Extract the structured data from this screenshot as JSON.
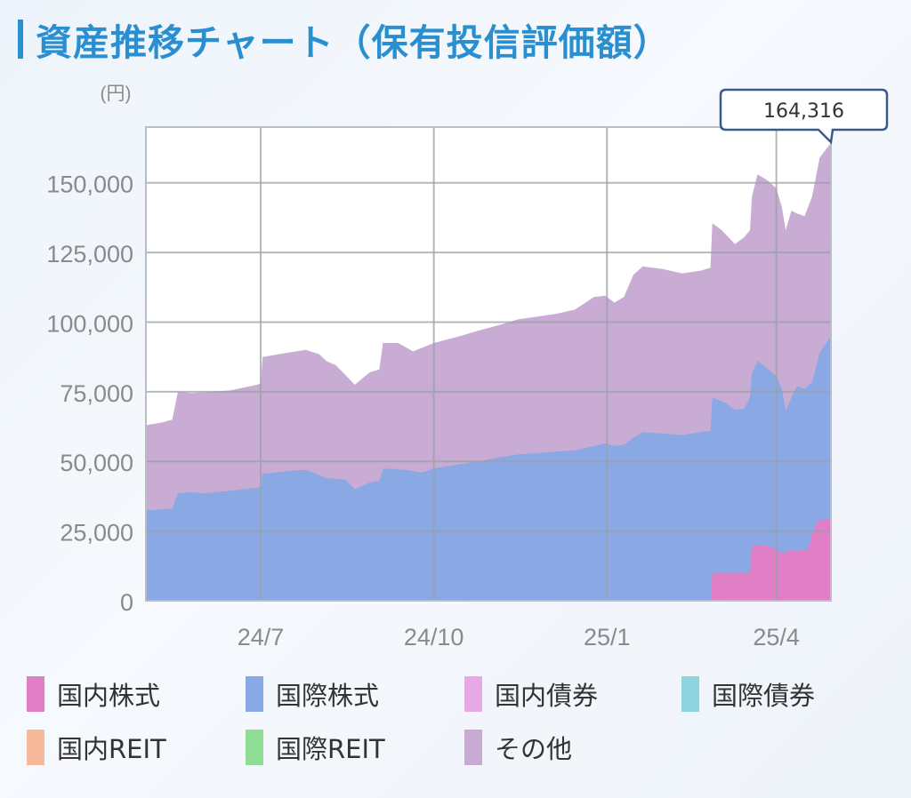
{
  "header": {
    "title": "資産推移チャート（保有投信評価額）"
  },
  "chart_data": {
    "type": "area",
    "stacked": true,
    "unit_label": "(円)",
    "grid": true,
    "ylim": [
      0,
      170000
    ],
    "yticks": [
      0,
      25000,
      50000,
      75000,
      100000,
      125000,
      150000
    ],
    "ytick_labels": [
      "0",
      "25,000",
      "50,000",
      "75,000",
      "100,000",
      "125,000",
      "150,000"
    ],
    "xlim": [
      "2024-05-01",
      "2025-04-30"
    ],
    "xticks": [
      "2024-07-01",
      "2024-10-01",
      "2025-01-01",
      "2025-04-01"
    ],
    "xtick_labels": [
      "24/7",
      "24/10",
      "25/1",
      "25/4"
    ],
    "tooltip": {
      "date": "2025-04-30",
      "label": "164,316"
    },
    "series": [
      {
        "name": "国内株式",
        "color": "#e07fc6",
        "points": [
          [
            "2025-02-25",
            0
          ],
          [
            "2025-02-26",
            10000
          ],
          [
            "2025-03-15",
            10000
          ],
          [
            "2025-03-18",
            10000
          ],
          [
            "2025-03-19",
            20000
          ],
          [
            "2025-03-25",
            20000
          ],
          [
            "2025-03-28",
            19500
          ],
          [
            "2025-04-01",
            18500
          ],
          [
            "2025-04-04",
            17000
          ],
          [
            "2025-04-08",
            18000
          ],
          [
            "2025-04-12",
            18000
          ],
          [
            "2025-04-18",
            18500
          ],
          [
            "2025-04-20",
            24000
          ],
          [
            "2025-04-23",
            28500
          ],
          [
            "2025-04-30",
            29500
          ]
        ]
      },
      {
        "name": "国際株式",
        "color": "#8aa8e4",
        "points": [
          [
            "2024-05-01",
            32500
          ],
          [
            "2024-05-10",
            32800
          ],
          [
            "2024-05-15",
            33100
          ],
          [
            "2024-05-18",
            38500
          ],
          [
            "2024-05-25",
            39000
          ],
          [
            "2024-05-31",
            38500
          ],
          [
            "2024-06-15",
            39500
          ],
          [
            "2024-06-29",
            40500
          ],
          [
            "2024-07-01",
            41000
          ],
          [
            "2024-07-02",
            45500
          ],
          [
            "2024-07-15",
            46500
          ],
          [
            "2024-07-25",
            47000
          ],
          [
            "2024-08-05",
            44000
          ],
          [
            "2024-08-15",
            43500
          ],
          [
            "2024-08-20",
            40000
          ],
          [
            "2024-08-28",
            42500
          ],
          [
            "2024-09-02",
            43000
          ],
          [
            "2024-09-04",
            47500
          ],
          [
            "2024-09-15",
            47000
          ],
          [
            "2024-09-25",
            46000
          ],
          [
            "2024-10-01",
            47500
          ],
          [
            "2024-10-15",
            49000
          ],
          [
            "2024-10-25",
            50000
          ],
          [
            "2024-11-05",
            51500
          ],
          [
            "2024-11-15",
            52500
          ],
          [
            "2024-11-25",
            53000
          ],
          [
            "2024-12-05",
            53500
          ],
          [
            "2024-12-15",
            54000
          ],
          [
            "2024-12-25",
            55500
          ],
          [
            "2024-12-31",
            56500
          ],
          [
            "2025-01-05",
            55500
          ],
          [
            "2025-01-10",
            56000
          ],
          [
            "2025-01-15",
            58500
          ],
          [
            "2025-01-20",
            60500
          ],
          [
            "2025-01-31",
            60000
          ],
          [
            "2025-02-10",
            59500
          ],
          [
            "2025-02-20",
            60500
          ],
          [
            "2025-02-25",
            61000
          ],
          [
            "2025-02-26",
            73000
          ],
          [
            "2025-03-05",
            71000
          ],
          [
            "2025-03-10",
            68500
          ],
          [
            "2025-03-15",
            69000
          ],
          [
            "2025-03-18",
            73000
          ],
          [
            "2025-03-19",
            81500
          ],
          [
            "2025-03-22",
            86000
          ],
          [
            "2025-03-27",
            83500
          ],
          [
            "2025-04-01",
            80500
          ],
          [
            "2025-04-04",
            76000
          ],
          [
            "2025-04-06",
            68000
          ],
          [
            "2025-04-09",
            73000
          ],
          [
            "2025-04-12",
            77000
          ],
          [
            "2025-04-16",
            76000
          ],
          [
            "2025-04-20",
            78500
          ],
          [
            "2025-04-24",
            89000
          ],
          [
            "2025-04-30",
            95000
          ]
        ]
      },
      {
        "name": "国内債券",
        "color": "#e6a9e6",
        "points": []
      },
      {
        "name": "国際債券",
        "color": "#8fd3de",
        "points": []
      },
      {
        "name": "国内REIT",
        "color": "#f8b99a",
        "points": []
      },
      {
        "name": "国際REIT",
        "color": "#8fdc94",
        "points": []
      },
      {
        "name": "その他",
        "color": "#c8acd4",
        "points": [
          [
            "2024-05-01",
            63000
          ],
          [
            "2024-05-10",
            64000
          ],
          [
            "2024-05-15",
            65000
          ],
          [
            "2024-05-18",
            75000
          ],
          [
            "2024-05-25",
            74500
          ],
          [
            "2024-06-05",
            75000
          ],
          [
            "2024-06-15",
            75500
          ],
          [
            "2024-06-29",
            77500
          ],
          [
            "2024-07-01",
            78000
          ],
          [
            "2024-07-02",
            87500
          ],
          [
            "2024-07-15",
            89000
          ],
          [
            "2024-07-25",
            90000
          ],
          [
            "2024-08-01",
            88500
          ],
          [
            "2024-08-05",
            86000
          ],
          [
            "2024-08-10",
            84500
          ],
          [
            "2024-08-20",
            77500
          ],
          [
            "2024-08-28",
            82000
          ],
          [
            "2024-09-02",
            83000
          ],
          [
            "2024-09-04",
            92500
          ],
          [
            "2024-09-12",
            92500
          ],
          [
            "2024-09-20",
            89500
          ],
          [
            "2024-10-01",
            92500
          ],
          [
            "2024-10-15",
            95000
          ],
          [
            "2024-10-25",
            97000
          ],
          [
            "2024-11-05",
            99000
          ],
          [
            "2024-11-15",
            101000
          ],
          [
            "2024-11-25",
            102000
          ],
          [
            "2024-12-05",
            103000
          ],
          [
            "2024-12-15",
            104500
          ],
          [
            "2024-12-25",
            109000
          ],
          [
            "2024-12-31",
            109500
          ],
          [
            "2025-01-05",
            107000
          ],
          [
            "2025-01-10",
            109000
          ],
          [
            "2025-01-15",
            117000
          ],
          [
            "2025-01-20",
            120000
          ],
          [
            "2025-01-31",
            119000
          ],
          [
            "2025-02-10",
            117500
          ],
          [
            "2025-02-20",
            118500
          ],
          [
            "2025-02-25",
            119500
          ],
          [
            "2025-02-26",
            135500
          ],
          [
            "2025-03-03",
            133000
          ],
          [
            "2025-03-10",
            128000
          ],
          [
            "2025-03-15",
            130500
          ],
          [
            "2025-03-18",
            133000
          ],
          [
            "2025-03-19",
            145000
          ],
          [
            "2025-03-22",
            153000
          ],
          [
            "2025-03-27",
            151000
          ],
          [
            "2025-04-01",
            148000
          ],
          [
            "2025-04-04",
            141000
          ],
          [
            "2025-04-06",
            133000
          ],
          [
            "2025-04-09",
            140000
          ],
          [
            "2025-04-12",
            139000
          ],
          [
            "2025-04-16",
            138000
          ],
          [
            "2025-04-20",
            145000
          ],
          [
            "2025-04-24",
            159000
          ],
          [
            "2025-04-30",
            164316
          ]
        ]
      }
    ]
  }
}
